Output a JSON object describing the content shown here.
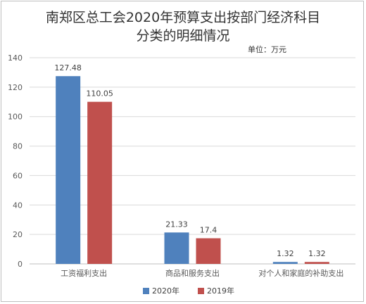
{
  "chart_data": {
    "type": "bar",
    "title_line1": "南郑区总工会2020年预算支出按部门经济科目",
    "title_line2": "分类的明细情况",
    "unit_label": "单位：万元",
    "categories": [
      "工资福利支出",
      "商品和服务支出",
      "对个人和家庭的补助支出"
    ],
    "series": [
      {
        "name": "2020年",
        "values": [
          127.48,
          21.33,
          1.32
        ],
        "labels": [
          "127.48",
          "21.33",
          "1.32"
        ],
        "color": "#4f81bd"
      },
      {
        "name": "2019年",
        "values": [
          110.05,
          17.4,
          1.32
        ],
        "labels": [
          "110.05",
          "17.4",
          "1.32"
        ],
        "color": "#c0504d"
      }
    ],
    "ylim": [
      0,
      140
    ],
    "yticks": [
      0,
      20,
      40,
      60,
      80,
      100,
      120,
      140
    ],
    "grid": true,
    "legend_position": "bottom"
  }
}
